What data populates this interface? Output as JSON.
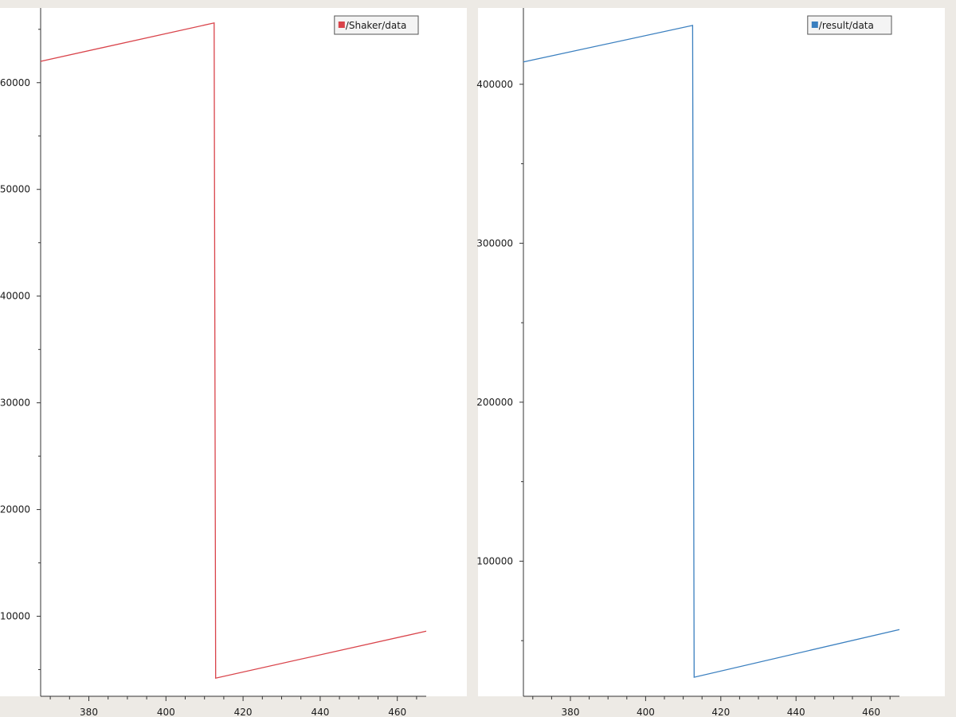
{
  "chart_data": [
    {
      "type": "line",
      "legend": "/Shaker/data",
      "legend_position": "top-right",
      "color": "#d9434a",
      "xlim": [
        367.5,
        467.5
      ],
      "ylim": [
        2500,
        67000
      ],
      "x_ticks": [
        380,
        400,
        420,
        440,
        460
      ],
      "y_ticks": [
        10000,
        20000,
        30000,
        40000,
        50000,
        60000
      ],
      "y_tick_labels": [
        "10000",
        "20000",
        "30000",
        "40000",
        "50000",
        "60000"
      ],
      "series": [
        {
          "x": [
            367.5,
            412.5,
            412.5,
            412.9,
            467.5
          ],
          "y": [
            62000,
            65600,
            65600,
            4200,
            8600
          ]
        }
      ]
    },
    {
      "type": "line",
      "legend": "/result/data",
      "legend_position": "top-right",
      "color": "#3a7fbf",
      "xlim": [
        367.5,
        467.5
      ],
      "ylim": [
        15000,
        448000
      ],
      "x_ticks": [
        380,
        400,
        420,
        440,
        460
      ],
      "y_ticks": [
        100000,
        200000,
        300000,
        400000
      ],
      "y_tick_labels": [
        "100000",
        "200000",
        "300000",
        "400000"
      ],
      "series": [
        {
          "x": [
            367.5,
            412.5,
            412.5,
            412.9,
            467.5
          ],
          "y": [
            414000,
            437000,
            437000,
            27000,
            57000
          ]
        }
      ]
    }
  ]
}
